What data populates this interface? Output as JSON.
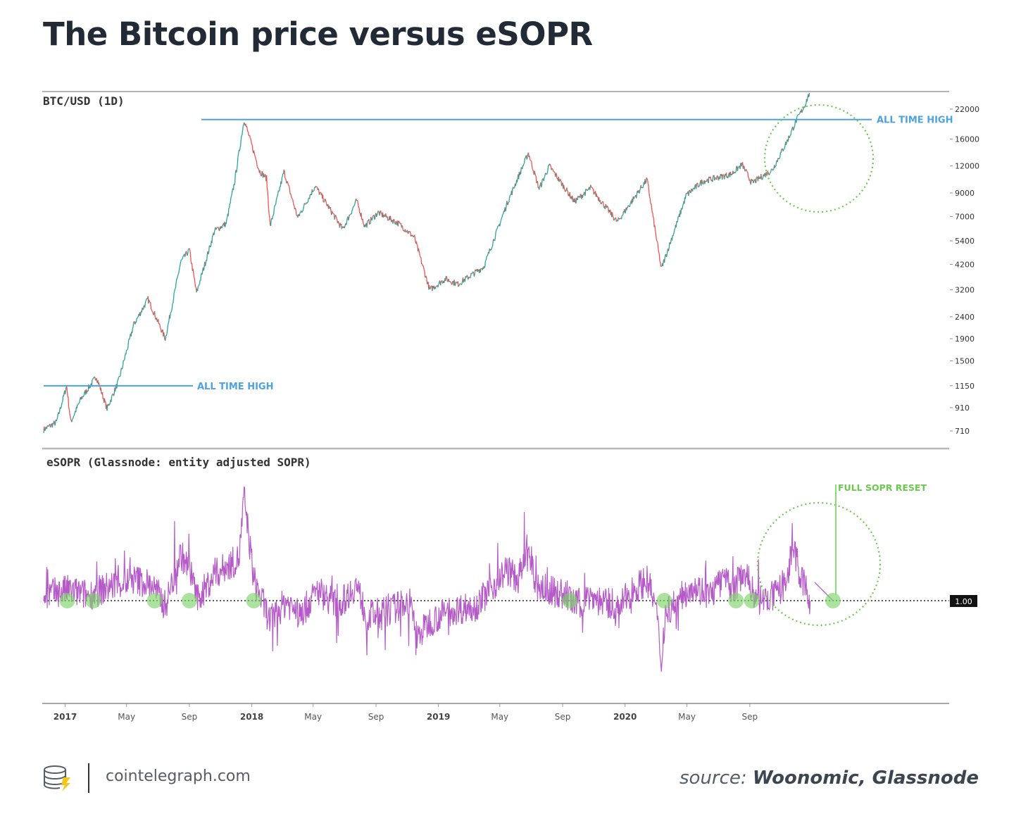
{
  "title": "The Bitcoin price versus eSOPR",
  "footer": {
    "site": "cointelegraph.com",
    "source_prefix": "source:",
    "source_names": "Woonomic, Glassnode",
    "logo_icon": "cointelegraph-logo-icon"
  },
  "colors": {
    "price_up": "#26a69a",
    "price_down": "#ef5350",
    "ath_line": "#4da3e0",
    "esopr_line": "#b55bc7",
    "reset_marker": "#7ed36a",
    "circle": "#6cc94e"
  },
  "chart_data": [
    {
      "type": "line",
      "label": "BTC/USD (1D)",
      "scale": "log",
      "yticks": [
        22000,
        16000,
        12000,
        9000,
        7000,
        5400,
        4200,
        3200,
        2400,
        1900,
        1500,
        1150,
        910,
        710
      ],
      "ylim": [
        650,
        23500
      ],
      "x_start": "2016-11-20",
      "x_end": "2021-01-10",
      "xticks": [
        {
          "date": "2017-01-01",
          "label": "2017",
          "major": true
        },
        {
          "date": "2017-05-01",
          "label": "May",
          "major": false
        },
        {
          "date": "2017-09-01",
          "label": "Sep",
          "major": false
        },
        {
          "date": "2018-01-01",
          "label": "2018",
          "major": true
        },
        {
          "date": "2018-05-01",
          "label": "May",
          "major": false
        },
        {
          "date": "2018-09-01",
          "label": "Sep",
          "major": false
        },
        {
          "date": "2019-01-01",
          "label": "2019",
          "major": true
        },
        {
          "date": "2019-05-01",
          "label": "May",
          "major": false
        },
        {
          "date": "2019-09-01",
          "label": "Sep",
          "major": false
        },
        {
          "date": "2020-01-01",
          "label": "2020",
          "major": true
        },
        {
          "date": "2020-05-01",
          "label": "May",
          "major": false
        },
        {
          "date": "2020-09-01",
          "label": "Sep",
          "major": false
        }
      ],
      "series": [
        {
          "x": [
            "2016-11-20",
            "2016-12-15",
            "2017-01-04",
            "2017-01-12",
            "2017-02-01",
            "2017-03-03",
            "2017-03-24",
            "2017-04-15",
            "2017-05-15",
            "2017-06-12",
            "2017-07-16",
            "2017-08-15",
            "2017-09-01",
            "2017-09-15",
            "2017-10-20",
            "2017-11-12",
            "2017-11-28",
            "2017-12-17",
            "2018-01-16",
            "2018-01-30",
            "2018-02-06",
            "2018-03-05",
            "2018-04-01",
            "2018-05-05",
            "2018-06-28",
            "2018-07-25",
            "2018-08-10",
            "2018-09-05",
            "2018-10-15",
            "2018-11-15",
            "2018-12-15",
            "2019-01-15",
            "2019-02-08",
            "2019-03-31",
            "2019-05-15",
            "2019-06-26",
            "2019-07-17",
            "2019-08-06",
            "2019-09-24",
            "2019-10-26",
            "2019-12-17",
            "2020-02-13",
            "2020-03-12",
            "2020-04-30",
            "2020-06-01",
            "2020-07-27",
            "2020-08-17",
            "2020-09-05",
            "2020-10-15",
            "2020-11-15",
            "2020-12-01",
            "2020-12-17",
            "2020-12-29"
          ],
          "y": [
            720,
            780,
            1150,
            780,
            1000,
            1270,
            900,
            1200,
            2200,
            2900,
            1900,
            4300,
            4900,
            3100,
            6000,
            6500,
            10000,
            19700,
            11400,
            10500,
            6300,
            11300,
            6900,
            9700,
            6100,
            8300,
            6300,
            7300,
            6500,
            5600,
            3200,
            3600,
            3400,
            4100,
            8000,
            13800,
            9400,
            12000,
            8200,
            9500,
            6600,
            10400,
            4000,
            8800,
            10200,
            11000,
            12200,
            10000,
            11500,
            16000,
            19500,
            22800,
            27000
          ]
        }
      ],
      "annotations": [
        {
          "label": "ALL TIME HIGH",
          "value": 19700
        },
        {
          "label": "ALL TIME HIGH",
          "value": 1150
        }
      ]
    },
    {
      "type": "line",
      "label": "eSOPR (Glassnode: entity adjusted SOPR)",
      "baseline": 1.0,
      "baseline_label": "1.00",
      "ylim": [
        0.84,
        1.22
      ],
      "annotation": "FULL SOPR RESET",
      "series": [
        {
          "x": [
            "2016-11-20",
            "2017-01-05",
            "2017-02-15",
            "2017-04-05",
            "2017-05-20",
            "2017-06-20",
            "2017-07-16",
            "2017-08-15",
            "2017-09-10",
            "2017-09-15",
            "2017-10-20",
            "2017-11-20",
            "2017-12-07",
            "2017-12-17",
            "2018-01-05",
            "2018-02-06",
            "2018-03-10",
            "2018-04-05",
            "2018-05-10",
            "2018-06-20",
            "2018-07-24",
            "2018-08-14",
            "2018-09-25",
            "2018-11-05",
            "2018-11-21",
            "2018-12-15",
            "2019-01-20",
            "2019-03-15",
            "2019-04-20",
            "2019-05-15",
            "2019-06-05",
            "2019-06-26",
            "2019-07-10",
            "2019-08-01",
            "2019-09-10",
            "2019-09-25",
            "2019-10-26",
            "2019-12-15",
            "2020-01-15",
            "2020-02-13",
            "2020-03-01",
            "2020-03-12",
            "2020-03-20",
            "2020-04-15",
            "2020-05-10",
            "2020-06-15",
            "2020-07-10",
            "2020-08-01",
            "2020-08-20",
            "2020-09-15",
            "2020-10-25",
            "2020-11-15",
            "2020-11-25",
            "2020-12-05",
            "2020-12-12",
            "2020-12-28"
          ],
          "y": [
            1.01,
            1.02,
            1.01,
            1.03,
            1.04,
            1.03,
            0.99,
            1.09,
            1.04,
            1.0,
            1.05,
            1.07,
            1.08,
            1.2,
            1.04,
            0.96,
            1.0,
            0.97,
            1.02,
            0.99,
            1.03,
            0.97,
            0.98,
            1.0,
            0.93,
            0.96,
            0.98,
            0.99,
            1.03,
            1.06,
            1.04,
            1.09,
            1.03,
            1.02,
            1.01,
            0.99,
            1.01,
            0.98,
            1.02,
            1.04,
            0.99,
            0.88,
            0.98,
            1.0,
            1.03,
            1.01,
            1.04,
            1.02,
            1.06,
            1.0,
            1.01,
            1.05,
            1.11,
            1.06,
            1.04,
            1.0
          ]
        }
      ],
      "reset_dates": [
        "2017-01-05",
        "2017-02-25",
        "2017-06-25",
        "2017-09-01",
        "2018-01-05",
        "2019-09-15",
        "2020-03-18",
        "2020-08-05",
        "2020-09-05",
        "2021-01-02"
      ]
    }
  ]
}
